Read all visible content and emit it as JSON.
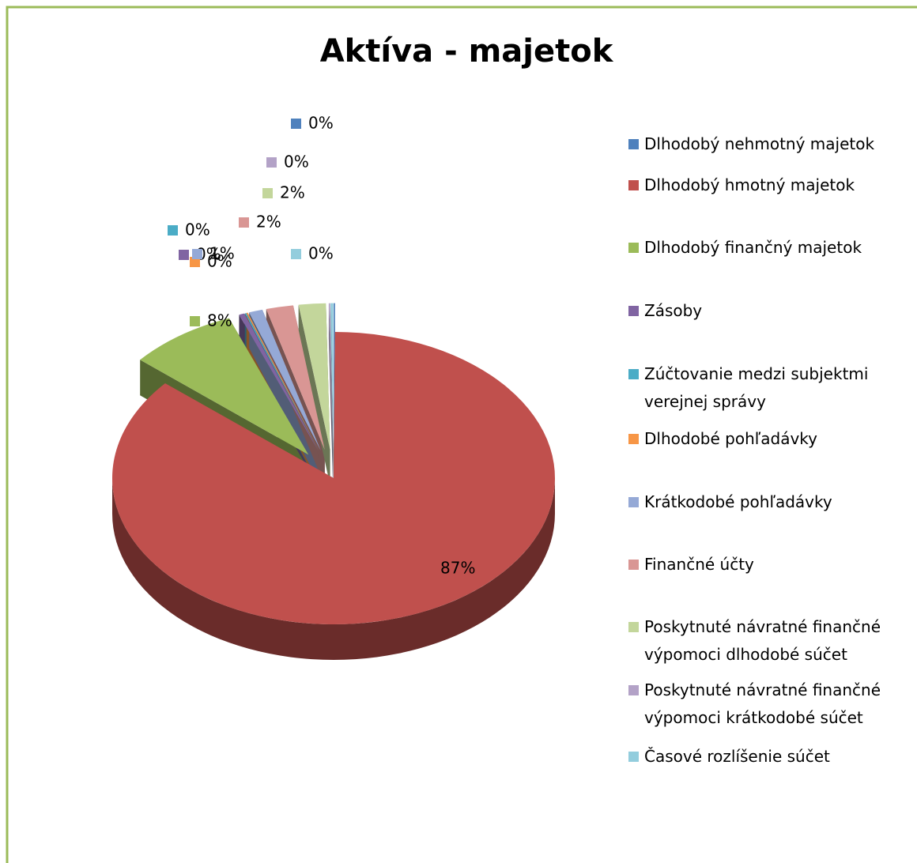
{
  "chart_data": {
    "type": "pie3d",
    "title": "Aktíva - majetok",
    "categories": [
      "Dlhodobý nehmotný majetok",
      "Dlhodobý hmotný majetok",
      "Dlhodobý finančný majetok",
      "Zásoby",
      "Zúčtovanie medzi subjektmi verejnej správy",
      "Dlhodobé pohľadávky",
      "Krátkodobé pohľadávky",
      "Finančné účty",
      "Poskytnuté návratné finančné výpomoci dlhodobé súčet",
      "Poskytnuté návratné finančné výpomoci krátkodobé súčet",
      "Časové rozlíšenie súčet"
    ],
    "values": [
      0.1,
      87,
      8,
      0.4,
      0.1,
      0.1,
      1,
      2,
      2,
      0.1,
      0.2
    ],
    "value_labels": [
      "0%",
      "87%",
      "8%",
      "0%",
      "0%",
      "0%",
      "1%",
      "2%",
      "2%",
      "0%",
      "0%"
    ],
    "colors": [
      "#4f81bd",
      "#c0504d",
      "#9bbb59",
      "#8064a2",
      "#4bacc6",
      "#f79646",
      "#95a9d6",
      "#d99694",
      "#c3d69b",
      "#b3a2c7",
      "#93cddd"
    ],
    "legend": "right"
  }
}
